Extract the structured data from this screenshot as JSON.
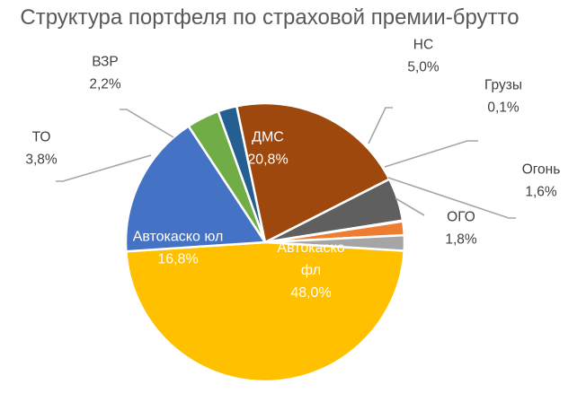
{
  "chart_data": {
    "type": "pie",
    "title": "Структура портфеля по страховой премии-брутто",
    "start_angle_deg": 63,
    "direction": "clockwise",
    "slices": [
      {
        "category": "НС",
        "value": 5.0,
        "label": "5,0%",
        "color": "#5f5f5f",
        "label_pos": "outside"
      },
      {
        "category": "Грузы",
        "value": 0.1,
        "label": "0,1%",
        "color": "#3a6fb0",
        "label_pos": "outside"
      },
      {
        "category": "Огонь",
        "value": 1.6,
        "label": "1,6%",
        "color": "#ed7d31",
        "label_pos": "outside"
      },
      {
        "category": "ОГО",
        "value": 1.8,
        "label": "1,8%",
        "color": "#a5a5a5",
        "label_pos": "outside"
      },
      {
        "category": "Автокаско фл",
        "category_lines": [
          "Автокаско",
          "фл"
        ],
        "value": 48.0,
        "label": "48,0%",
        "color": "#ffc000",
        "label_pos": "inside"
      },
      {
        "category": "Автокаско юл",
        "value": 16.8,
        "label": "16,8%",
        "color": "#4472c4",
        "label_pos": "inside"
      },
      {
        "category": "ТО",
        "value": 3.8,
        "label": "3,8%",
        "color": "#70ad47",
        "label_pos": "outside"
      },
      {
        "category": "ВЗР",
        "value": 2.2,
        "label": "2,2%",
        "color": "#255e91",
        "label_pos": "outside"
      },
      {
        "category": "ДМС",
        "value": 20.8,
        "label": "20,8%",
        "color": "#9e480e",
        "label_pos": "inside"
      }
    ],
    "leader_line_color": "#a6a6a6",
    "slice_border_color": "#ffffff"
  }
}
